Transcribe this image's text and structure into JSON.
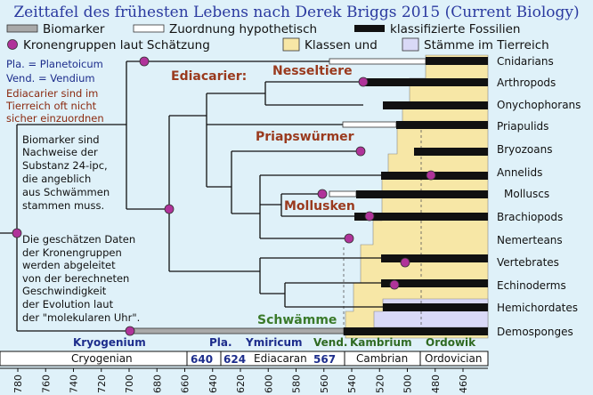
{
  "title": "Zeittafel des frühesten Lebens nach Derek Briggs 2015 (Current Biology)",
  "legend": {
    "biomarker": "Biomarker",
    "hypothetical": "Zuordnung hypothetisch",
    "classified": "klassifizierte Fossilien",
    "crown_groups": "Kronengruppen laut Schätzung",
    "classes": "Klassen und",
    "phyla": "Stämme im Tierreich"
  },
  "notes": {
    "pla": "Pla. = Planetoicum",
    "vend": "Vend. = Vendium",
    "ediacaran_note": [
      "Ediacarier sind im",
      "Tierreich oft nicht",
      "sicher einzuordnen"
    ],
    "biomarker_note": [
      "Biomarker sind",
      "Nachweise der",
      "Substanz 24-ipc,",
      "die angeblich",
      "aus Schwämmen",
      "stammen muss."
    ],
    "date_note": [
      "Die geschätzen Daten",
      "der Kronengruppen",
      "werden abgeleitet",
      "von der berechneten",
      "Geschwindigkeit",
      "der Evolution laut",
      "der \"molekularen Uhr\"."
    ]
  },
  "groups": {
    "ediacarier": "Ediacarier:",
    "nesseltiere": "Nesseltiere",
    "priapswuermer": "Priapswürmer",
    "mollusken": "Mollusken",
    "schwaemme": "Schwämme"
  },
  "taxa": [
    "Cnidarians",
    "Arthropods",
    "Onychophorans",
    "Priapulids",
    "Bryozoans",
    "Annelids",
    "Molluscs",
    "Brachiopods",
    "Nemerteans",
    "Vertebrates",
    "Echinoderms",
    "Hemichordates",
    "Demosponges"
  ],
  "eras_top": {
    "kryogenium": "Kryogenium",
    "pla": "Pla.",
    "ymiricum": "Ymiricum",
    "vend": "Vend.",
    "kambrium": "Kambrium",
    "ordowik": "Ordowik"
  },
  "periods": {
    "cryogenian": "Cryogenian",
    "b640": "640",
    "b624": "624",
    "ediacaran": "Ediacaran",
    "b567": "567",
    "cambrian": "Cambrian",
    "ordovician": "Ordovician"
  },
  "ticks": [
    780,
    760,
    740,
    720,
    700,
    680,
    660,
    640,
    620,
    600,
    580,
    560,
    540,
    520,
    500,
    480,
    460
  ],
  "colors": {
    "background": "#dff1f9",
    "classes_fill": "#f7e7a6",
    "phyla_fill": "#d9d9f7",
    "crown_dot": "#b0339a",
    "title": "#2b3aa0",
    "red_label": "#9a3a1e",
    "green_label": "#3a7a2a"
  }
}
